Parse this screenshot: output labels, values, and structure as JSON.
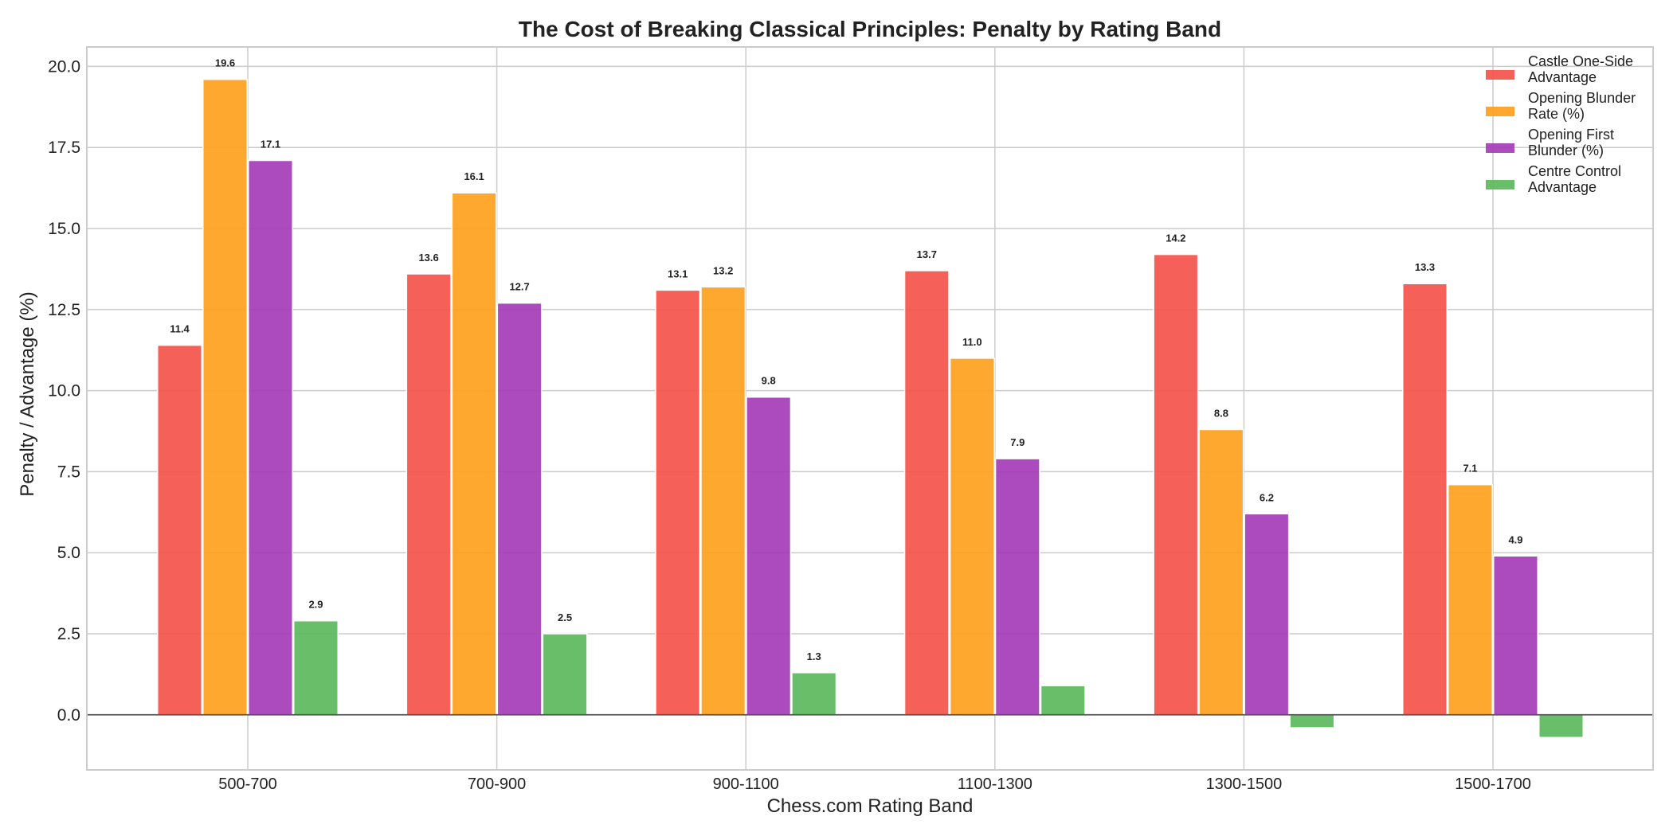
{
  "chart_data": {
    "type": "bar",
    "title": "The Cost of Breaking Classical Principles: Penalty by Rating Band",
    "xlabel": "Chess.com Rating Band",
    "ylabel": "Penalty / Advantage (%)",
    "categories": [
      "500-700",
      "700-900",
      "900-1100",
      "1100-1300",
      "1300-1500",
      "1500-1700"
    ],
    "ylim": [
      -1.7,
      20.6
    ],
    "yticks": [
      0.0,
      2.5,
      5.0,
      7.5,
      10.0,
      12.5,
      15.0,
      17.5,
      20.0
    ],
    "grid": true,
    "legend_position": "top-right",
    "series": [
      {
        "name": "Castle One-Side Advantage",
        "legend_lines": [
          "Castle One-Side",
          "Advantage"
        ],
        "color": "#f4544a",
        "values": [
          11.4,
          13.6,
          13.1,
          13.7,
          14.2,
          13.3
        ],
        "labels": [
          "11.4",
          "13.6",
          "13.1",
          "13.7",
          "14.2",
          "13.3"
        ]
      },
      {
        "name": "Opening Blunder Rate (%)",
        "legend_lines": [
          "Opening Blunder",
          "Rate (%)"
        ],
        "color": "#ffa11e",
        "values": [
          19.6,
          16.1,
          13.2,
          11.0,
          8.8,
          7.1
        ],
        "labels": [
          "19.6",
          "16.1",
          "13.2",
          "11.0",
          "8.8",
          "7.1"
        ]
      },
      {
        "name": "Opening First Blunder (%)",
        "legend_lines": [
          "Opening First",
          "Blunder (%)"
        ],
        "color": "#a43cb8",
        "values": [
          17.1,
          12.7,
          9.8,
          7.9,
          6.2,
          4.9
        ],
        "labels": [
          "17.1",
          "12.7",
          "9.8",
          "7.9",
          "6.2",
          "4.9"
        ]
      },
      {
        "name": "Centre Control Advantage",
        "legend_lines": [
          "Centre Control",
          "Advantage"
        ],
        "color": "#5cb85c",
        "values": [
          2.9,
          2.5,
          1.3,
          0.9,
          -0.4,
          -0.7
        ],
        "labels": [
          "2.9",
          "2.5",
          "1.3",
          "",
          "",
          ""
        ]
      }
    ]
  }
}
